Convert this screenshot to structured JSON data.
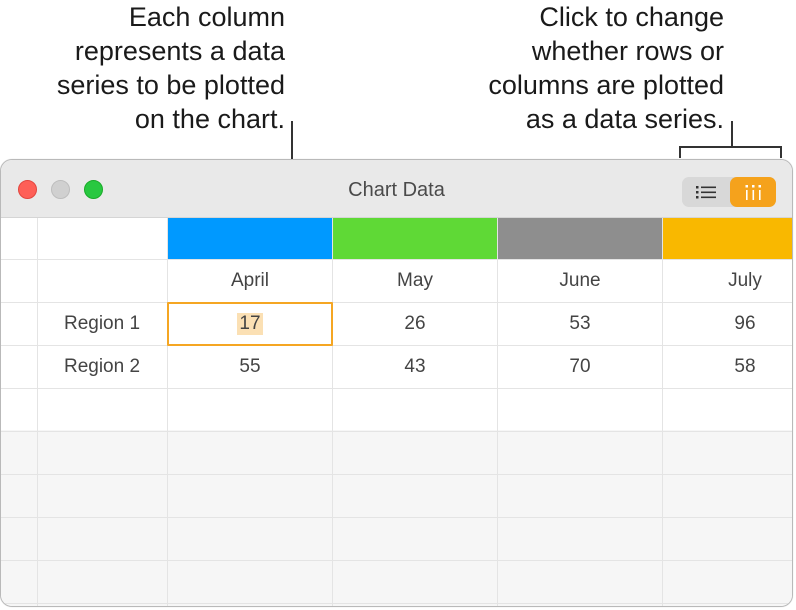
{
  "callouts": {
    "left": [
      "Each column",
      "represents a data",
      "series to be plotted",
      "on the chart."
    ],
    "right": [
      "Click to change",
      "whether rows or",
      "columns are plotted",
      "as a data series."
    ]
  },
  "window": {
    "title": "Chart Data",
    "toggle": {
      "selected": "columns",
      "rows_icon": "list-icon",
      "columns_icon": "columns-icon"
    }
  },
  "table": {
    "series_colors": [
      "#0099ff",
      "#5fd936",
      "#8e8e8e",
      "#f9b800"
    ],
    "columns": [
      "April",
      "May",
      "June",
      "July"
    ],
    "rows": [
      {
        "label": "Region 1",
        "values": [
          "17",
          "26",
          "53",
          "96"
        ]
      },
      {
        "label": "Region 2",
        "values": [
          "55",
          "43",
          "70",
          "58"
        ]
      }
    ],
    "selected_cell": "17"
  }
}
